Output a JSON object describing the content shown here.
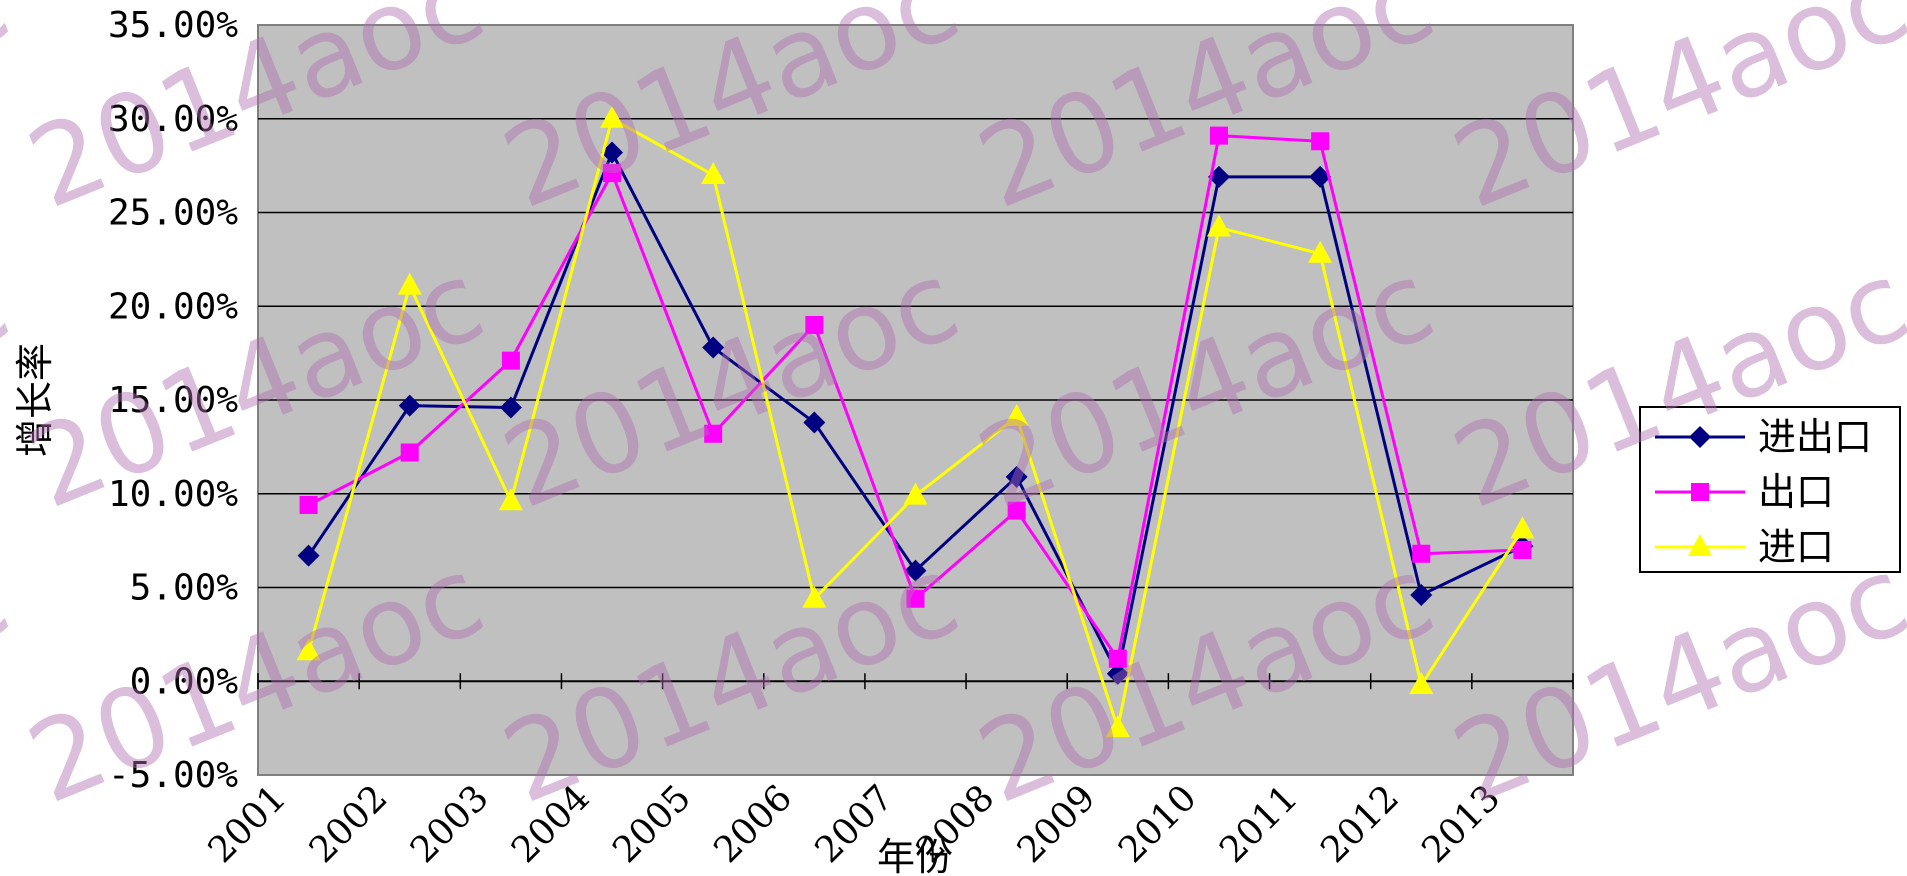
{
  "chart_data": {
    "type": "line",
    "categories": [
      "2001",
      "2002",
      "2003",
      "2004",
      "2005",
      "2006",
      "2007",
      "2008",
      "2009",
      "2010",
      "2011",
      "2012",
      "2013"
    ],
    "xlabel": "年份",
    "ylabel": "增长率",
    "ylim": [
      -5,
      35
    ],
    "ytick_step": 5,
    "ytick_labels": [
      "-5.00%",
      "0.00%",
      "5.00%",
      "10.00%",
      "15.00%",
      "20.00%",
      "25.00%",
      "30.00%",
      "35.00%"
    ],
    "grid": "horizontal",
    "legend_position": "right",
    "plot_background": "#c0c0c0",
    "series": [
      {
        "name": "进出口",
        "color": "#000080",
        "marker": "diamond",
        "values": [
          6.7,
          14.7,
          14.6,
          28.2,
          17.8,
          13.8,
          5.9,
          10.9,
          0.4,
          26.9,
          26.9,
          4.6,
          7.2
        ]
      },
      {
        "name": "出口",
        "color": "#ff00ff",
        "marker": "square",
        "values": [
          9.4,
          12.2,
          17.1,
          27.1,
          13.2,
          19.0,
          4.4,
          9.1,
          1.2,
          29.1,
          28.8,
          6.8,
          7.0
        ]
      },
      {
        "name": "进口",
        "color": "#ffff00",
        "marker": "triangle",
        "values": [
          1.6,
          21.1,
          9.6,
          30.0,
          27.0,
          4.4,
          9.9,
          14.1,
          -2.5,
          24.2,
          22.8,
          -0.2,
          8.1
        ]
      }
    ],
    "watermark": "2014aoc"
  }
}
